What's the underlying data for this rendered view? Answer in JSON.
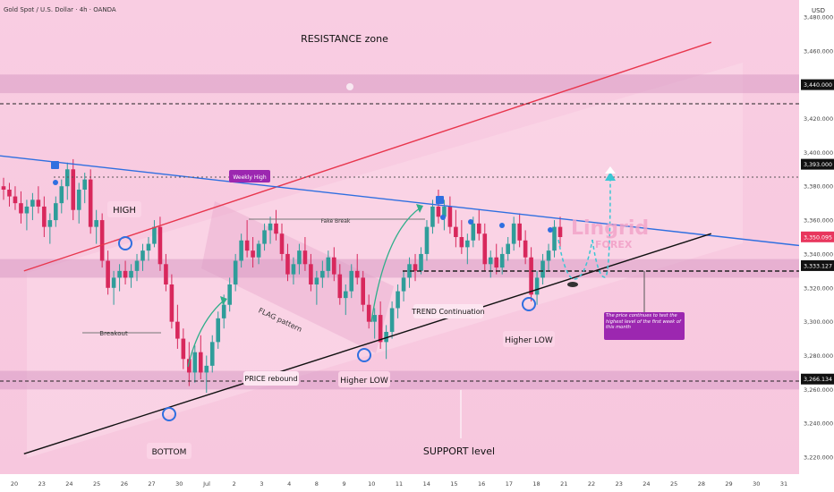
{
  "header": {
    "title": "Gold Spot / U.S. Dollar · 4h · OANDA",
    "currency": "USD"
  },
  "watermark": {
    "main": "Lingrid",
    "sub": "FOREX"
  },
  "colors": {
    "bull": "#2f9d9a",
    "bear": "#d8285c",
    "resistance_line": "#e8364d",
    "trend_line": "#2f6fe0",
    "support_line": "#111111",
    "zone_fill": "#d99bc5",
    "cyan_projection": "#3bc6d4",
    "note_box": "#9c27b0",
    "price_tag": "#e8365d"
  },
  "annotations": {
    "resistance_zone": "RESISTANCE zone",
    "support_level": "SUPPORT level",
    "high": "HIGH",
    "bottom": "BOTTOM",
    "breakout": "Breakout",
    "price_rebound": "PRICE rebound",
    "flag_pattern": "FLAG pattern",
    "weekly_high": "Weekly High",
    "fake_break": "Fake Break",
    "higher_low_1": "Higher LOW",
    "higher_low_2": "Higher LOW",
    "trend_continuation": "TREND Continuation",
    "note": "The price continues to test the highest level of the first week of this month"
  },
  "chart_data": {
    "type": "candlestick",
    "symbol": "XAUUSD",
    "timeframe": "4h",
    "ylim": [
      3210,
      3490
    ],
    "y_ticks": [
      3220,
      3240,
      3260,
      3280,
      3300,
      3320,
      3340,
      3360,
      3380,
      3400,
      3420,
      3460,
      3480
    ],
    "x_ticks": [
      "20",
      "23",
      "24",
      "25",
      "26",
      "27",
      "30",
      "Jul",
      "2",
      "3",
      "4",
      "8",
      "9",
      "10",
      "11",
      "14",
      "15",
      "16",
      "17",
      "18",
      "21",
      "22",
      "23",
      "24",
      "25",
      "28",
      "29",
      "30",
      "31"
    ],
    "price_tags": [
      {
        "value": "3,440.000",
        "price": 3440
      },
      {
        "value": "3,393.000",
        "price": 3393
      },
      {
        "value": "3,350.095",
        "price": 3350.095
      },
      {
        "value": "3,333.127",
        "price": 3333.127
      },
      {
        "value": "3,266.134",
        "price": 3266.134
      }
    ],
    "zones": [
      {
        "name": "resistance",
        "from": 3435,
        "to": 3446
      },
      {
        "name": "mid",
        "from": 3326,
        "to": 3337
      },
      {
        "name": "support",
        "from": 3260,
        "to": 3271
      }
    ],
    "candles": [
      [
        3380,
        3385,
        3372,
        3378
      ],
      [
        3378,
        3382,
        3368,
        3374
      ],
      [
        3374,
        3380,
        3366,
        3370
      ],
      [
        3370,
        3377,
        3358,
        3364
      ],
      [
        3364,
        3372,
        3354,
        3368
      ],
      [
        3368,
        3376,
        3360,
        3372
      ],
      [
        3372,
        3380,
        3364,
        3368
      ],
      [
        3368,
        3374,
        3350,
        3356
      ],
      [
        3356,
        3364,
        3346,
        3360
      ],
      [
        3360,
        3374,
        3356,
        3370
      ],
      [
        3370,
        3384,
        3364,
        3380
      ],
      [
        3380,
        3394,
        3372,
        3390
      ],
      [
        3390,
        3396,
        3360,
        3366
      ],
      [
        3366,
        3382,
        3358,
        3378
      ],
      [
        3378,
        3388,
        3370,
        3384
      ],
      [
        3384,
        3390,
        3352,
        3356
      ],
      [
        3356,
        3366,
        3346,
        3360
      ],
      [
        3360,
        3364,
        3332,
        3336
      ],
      [
        3336,
        3342,
        3316,
        3320
      ],
      [
        3320,
        3330,
        3310,
        3326
      ],
      [
        3326,
        3334,
        3318,
        3330
      ],
      [
        3330,
        3336,
        3322,
        3326
      ],
      [
        3326,
        3334,
        3320,
        3330
      ],
      [
        3330,
        3340,
        3324,
        3336
      ],
      [
        3336,
        3346,
        3330,
        3342
      ],
      [
        3342,
        3350,
        3336,
        3346
      ],
      [
        3346,
        3360,
        3344,
        3356
      ],
      [
        3356,
        3362,
        3330,
        3334
      ],
      [
        3334,
        3340,
        3318,
        3322
      ],
      [
        3322,
        3328,
        3296,
        3300
      ],
      [
        3300,
        3310,
        3284,
        3290
      ],
      [
        3290,
        3296,
        3272,
        3278
      ],
      [
        3278,
        3288,
        3262,
        3270
      ],
      [
        3270,
        3286,
        3264,
        3282
      ],
      [
        3282,
        3292,
        3266,
        3270
      ],
      [
        3270,
        3280,
        3258,
        3274
      ],
      [
        3274,
        3292,
        3270,
        3288
      ],
      [
        3288,
        3306,
        3284,
        3302
      ],
      [
        3302,
        3316,
        3296,
        3310
      ],
      [
        3310,
        3326,
        3306,
        3322
      ],
      [
        3322,
        3340,
        3318,
        3336
      ],
      [
        3336,
        3352,
        3332,
        3348
      ],
      [
        3348,
        3360,
        3338,
        3342
      ],
      [
        3342,
        3350,
        3332,
        3338
      ],
      [
        3338,
        3348,
        3334,
        3346
      ],
      [
        3346,
        3358,
        3342,
        3354
      ],
      [
        3354,
        3362,
        3346,
        3358
      ],
      [
        3358,
        3366,
        3348,
        3352
      ],
      [
        3352,
        3358,
        3336,
        3340
      ],
      [
        3340,
        3346,
        3324,
        3328
      ],
      [
        3328,
        3338,
        3322,
        3334
      ],
      [
        3334,
        3346,
        3328,
        3342
      ],
      [
        3342,
        3350,
        3330,
        3334
      ],
      [
        3334,
        3340,
        3318,
        3322
      ],
      [
        3322,
        3330,
        3310,
        3326
      ],
      [
        3326,
        3336,
        3320,
        3330
      ],
      [
        3330,
        3342,
        3326,
        3338
      ],
      [
        3338,
        3344,
        3324,
        3328
      ],
      [
        3328,
        3334,
        3310,
        3314
      ],
      [
        3314,
        3322,
        3304,
        3318
      ],
      [
        3318,
        3334,
        3314,
        3330
      ],
      [
        3330,
        3340,
        3322,
        3326
      ],
      [
        3326,
        3330,
        3306,
        3310
      ],
      [
        3310,
        3316,
        3296,
        3300
      ],
      [
        3300,
        3308,
        3290,
        3304
      ],
      [
        3304,
        3312,
        3284,
        3288
      ],
      [
        3288,
        3298,
        3278,
        3294
      ],
      [
        3294,
        3312,
        3290,
        3308
      ],
      [
        3308,
        3322,
        3302,
        3318
      ],
      [
        3318,
        3330,
        3312,
        3326
      ],
      [
        3326,
        3338,
        3320,
        3334
      ],
      [
        3334,
        3340,
        3324,
        3330
      ],
      [
        3330,
        3344,
        3328,
        3340
      ],
      [
        3340,
        3360,
        3336,
        3356
      ],
      [
        3356,
        3372,
        3352,
        3368
      ],
      [
        3368,
        3378,
        3358,
        3362
      ],
      [
        3362,
        3372,
        3354,
        3368
      ],
      [
        3368,
        3374,
        3352,
        3356
      ],
      [
        3356,
        3366,
        3344,
        3350
      ],
      [
        3350,
        3360,
        3340,
        3344
      ],
      [
        3344,
        3352,
        3334,
        3348
      ],
      [
        3348,
        3362,
        3344,
        3358
      ],
      [
        3358,
        3366,
        3348,
        3352
      ],
      [
        3352,
        3358,
        3330,
        3334
      ],
      [
        3334,
        3342,
        3326,
        3338
      ],
      [
        3338,
        3346,
        3328,
        3332
      ],
      [
        3332,
        3344,
        3328,
        3340
      ],
      [
        3340,
        3350,
        3336,
        3346
      ],
      [
        3346,
        3362,
        3342,
        3358
      ],
      [
        3358,
        3364,
        3344,
        3348
      ],
      [
        3348,
        3354,
        3334,
        3338
      ],
      [
        3338,
        3344,
        3312,
        3316
      ],
      [
        3316,
        3330,
        3310,
        3326
      ],
      [
        3326,
        3340,
        3322,
        3336
      ],
      [
        3336,
        3346,
        3330,
        3342
      ],
      [
        3342,
        3360,
        3338,
        3356
      ],
      [
        3356,
        3362,
        3344,
        3350
      ]
    ],
    "lines": [
      {
        "name": "resistance-line",
        "from": [
          0.03,
          3330
        ],
        "to": [
          0.89,
          3465
        ]
      },
      {
        "name": "trend-line",
        "from": [
          0.0,
          3398
        ],
        "to": [
          1.0,
          3345
        ]
      },
      {
        "name": "support-line",
        "from": [
          0.03,
          3222
        ],
        "to": [
          0.89,
          3352
        ]
      }
    ]
  }
}
